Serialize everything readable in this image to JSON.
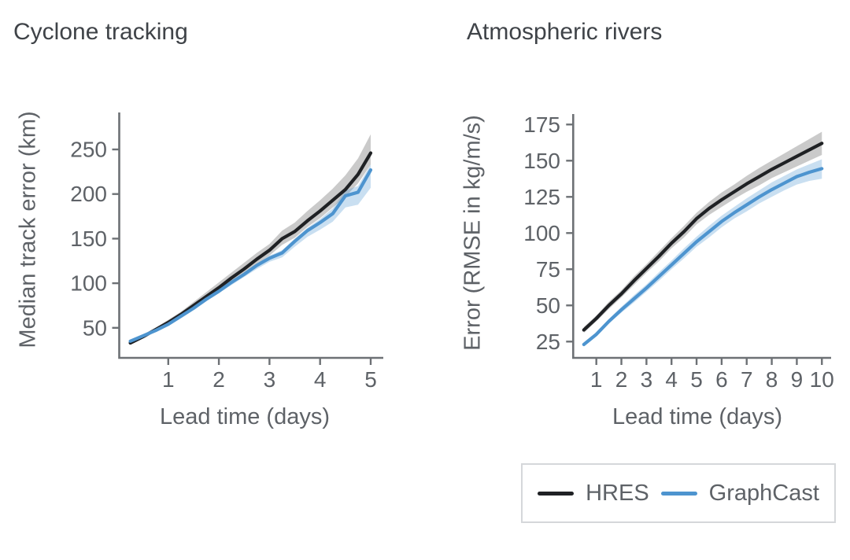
{
  "page": {
    "background": "#ffffff"
  },
  "colors": {
    "hres_line": "#1f2124",
    "graphcast_line": "#4d94cf",
    "hres_band": "rgba(128,128,128,0.42)",
    "graphcast_band": "rgba(77,148,209,0.30)",
    "axis": "#6d7175",
    "tick_text": "#5e6267",
    "title_text": "#3f4348",
    "legend_border": "#d5d7da"
  },
  "legend": {
    "position": "bottom-right",
    "items": [
      {
        "label": "HRES",
        "color": "#1f2124"
      },
      {
        "label": "GraphCast",
        "color": "#4d94cf"
      }
    ]
  },
  "chart_data": [
    {
      "type": "line",
      "title": "Cyclone tracking",
      "xlabel": "Lead time (days)",
      "ylabel": "Median track error (km)",
      "x_ticks": [
        1,
        2,
        3,
        4,
        5
      ],
      "y_ticks": [
        50,
        100,
        150,
        200,
        250
      ],
      "xlim": [
        0.03,
        5.25
      ],
      "ylim": [
        16,
        291
      ],
      "grid": false,
      "series": [
        {
          "name": "HRES",
          "color": "#1f2124",
          "band_color": "rgba(128,128,128,0.42)",
          "x": [
            0.25,
            0.5,
            0.75,
            1,
            1.25,
            1.5,
            1.75,
            2,
            2.25,
            2.5,
            2.75,
            3,
            3.25,
            3.5,
            3.75,
            4,
            4.25,
            4.5,
            4.75,
            5
          ],
          "y": [
            33,
            40,
            48,
            56,
            65,
            75,
            85,
            95,
            106,
            116,
            127,
            137,
            150,
            158,
            170,
            181,
            193,
            205,
            222,
            246
          ],
          "band_hi": [
            35,
            42,
            50,
            59,
            68,
            79,
            90,
            101,
            112,
            123,
            134,
            144,
            159,
            168,
            181,
            193,
            206,
            221,
            240,
            267
          ],
          "band_lo": [
            31,
            38,
            46,
            53,
            62,
            71,
            81,
            91,
            101,
            111,
            121,
            131,
            143,
            151,
            163,
            173,
            185,
            197,
            212,
            233
          ]
        },
        {
          "name": "GraphCast",
          "color": "#4d94cf",
          "band_color": "rgba(77,148,209,0.30)",
          "x": [
            0.25,
            0.5,
            0.75,
            1,
            1.25,
            1.5,
            1.75,
            2,
            2.25,
            2.5,
            2.75,
            3,
            3.25,
            3.5,
            3.75,
            4,
            4.25,
            4.5,
            4.75,
            5
          ],
          "y": [
            35,
            41,
            47,
            54,
            63,
            72,
            82,
            91,
            101,
            110,
            120,
            128,
            134,
            147,
            159,
            168,
            178,
            198,
            202,
            227
          ],
          "band_hi": [
            36,
            42,
            48,
            56,
            65,
            74,
            84,
            93,
            103,
            112,
            122,
            131,
            137,
            150,
            162,
            172,
            184,
            204,
            209,
            233
          ],
          "band_lo": [
            34,
            40,
            46,
            52,
            61,
            70,
            80,
            89,
            98,
            107,
            116,
            124,
            129,
            141,
            152,
            160,
            169,
            185,
            188,
            207
          ]
        }
      ]
    },
    {
      "type": "line",
      "title": "Atmospheric rivers",
      "xlabel": "Lead time (days)",
      "ylabel": "Error (RMSE in kg/m/s)",
      "x_ticks": [
        1,
        2,
        3,
        4,
        5,
        6,
        7,
        8,
        9,
        10
      ],
      "y_ticks": [
        25,
        50,
        75,
        100,
        125,
        150,
        175
      ],
      "xlim": [
        0.08,
        10.37
      ],
      "ylim": [
        13.7,
        182
      ],
      "grid": false,
      "series": [
        {
          "name": "HRES",
          "color": "#1f2124",
          "band_color": "rgba(128,128,128,0.42)",
          "x": [
            0.5,
            1,
            1.5,
            2,
            2.5,
            3,
            3.5,
            4,
            4.5,
            5,
            5.5,
            6,
            6.5,
            7,
            7.5,
            8,
            8.5,
            9,
            9.5,
            10
          ],
          "y": [
            33,
            41,
            50,
            58,
            67,
            75.5,
            84,
            93,
            101,
            110,
            117,
            123,
            128.5,
            134,
            139,
            144,
            148.5,
            153,
            157.5,
            162
          ],
          "band_hi": [
            35,
            43,
            52.5,
            60.5,
            70,
            78.5,
            87.5,
            96.5,
            105,
            114,
            121.5,
            128,
            133.5,
            139.5,
            145,
            150,
            155,
            160,
            165,
            170
          ],
          "band_lo": [
            31,
            39,
            47.5,
            55.5,
            64,
            72.5,
            80.5,
            89.5,
            97,
            106,
            112.5,
            118,
            123.5,
            128.5,
            133,
            138,
            142,
            146,
            150,
            154
          ]
        },
        {
          "name": "GraphCast",
          "color": "#4d94cf",
          "band_color": "rgba(77,148,209,0.30)",
          "x": [
            0.5,
            1,
            1.5,
            2,
            2.5,
            3,
            3.5,
            4,
            4.5,
            5,
            5.5,
            6,
            6.5,
            7,
            7.5,
            8,
            8.5,
            9,
            9.5,
            10
          ],
          "y": [
            23,
            30,
            39,
            47,
            54.5,
            62,
            70,
            78,
            86,
            94,
            101,
            108,
            114,
            119.5,
            125,
            130,
            134.5,
            139,
            142,
            144.5
          ],
          "band_hi": [
            24.5,
            31.5,
            40.5,
            49,
            57,
            64.5,
            73,
            81,
            89.5,
            97.5,
            105,
            112,
            118,
            124,
            129.5,
            135,
            139.5,
            144,
            147.5,
            151
          ],
          "band_lo": [
            21.5,
            28.5,
            37.5,
            45,
            52,
            59.5,
            67,
            75,
            82.5,
            90.5,
            97,
            104,
            110,
            115,
            120.5,
            125,
            129.5,
            133.5,
            136,
            137.5
          ]
        }
      ]
    }
  ]
}
